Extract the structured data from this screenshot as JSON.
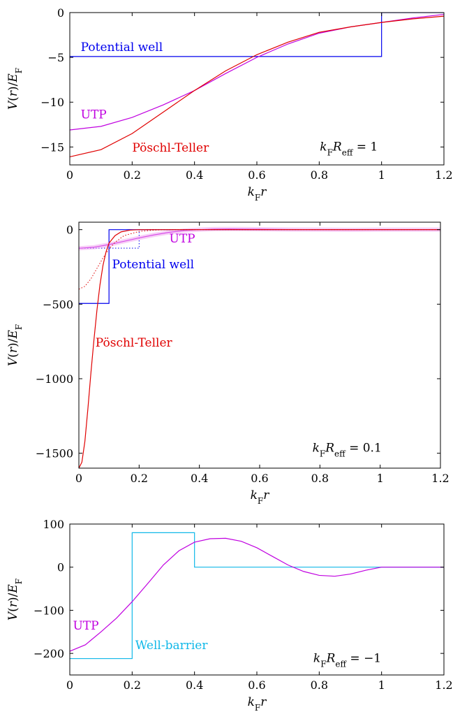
{
  "chart_data": [
    {
      "type": "line",
      "xlabel": "kFr",
      "ylabel": "V(r)/EF",
      "xlim": [
        0,
        1.2
      ],
      "ylim": [
        -17,
        0
      ],
      "xticks": [
        0,
        0.2,
        0.4,
        0.6,
        0.8,
        1,
        1.2
      ],
      "xtick_labels": [
        "0",
        "0.2",
        "0.4",
        "0.6",
        "0.8",
        "1",
        "1.2"
      ],
      "yticks": [
        0,
        -5,
        -10,
        -15
      ],
      "ytick_labels": [
        "0",
        "−5",
        "−10",
        "−15"
      ],
      "annotation": "kFReff = 1",
      "series": [
        {
          "name": "Potential well",
          "color": "#0000ee",
          "style": "solid",
          "points": [
            [
              0,
              -4.9
            ],
            [
              1.0,
              -4.9
            ],
            [
              1.0,
              0
            ],
            [
              1.2,
              0
            ]
          ]
        },
        {
          "name": "UTP",
          "color": "#c000e0",
          "style": "solid",
          "points": [
            [
              0,
              -13.1
            ],
            [
              0.1,
              -12.7
            ],
            [
              0.2,
              -11.7
            ],
            [
              0.3,
              -10.3
            ],
            [
              0.4,
              -8.7
            ],
            [
              0.5,
              -6.8
            ],
            [
              0.6,
              -5.0
            ],
            [
              0.7,
              -3.5
            ],
            [
              0.8,
              -2.3
            ],
            [
              0.9,
              -1.6
            ],
            [
              1.0,
              -1.1
            ],
            [
              1.1,
              -0.6
            ],
            [
              1.2,
              -0.2
            ]
          ]
        },
        {
          "name": "Pöschl-Teller",
          "color": "#e00000",
          "style": "solid",
          "points": [
            [
              0,
              -16.1
            ],
            [
              0.1,
              -15.3
            ],
            [
              0.2,
              -13.5
            ],
            [
              0.3,
              -11.1
            ],
            [
              0.4,
              -8.7
            ],
            [
              0.5,
              -6.5
            ],
            [
              0.6,
              -4.7
            ],
            [
              0.7,
              -3.3
            ],
            [
              0.8,
              -2.2
            ],
            [
              0.9,
              -1.6
            ],
            [
              1.0,
              -1.1
            ],
            [
              1.1,
              -0.7
            ],
            [
              1.2,
              -0.4
            ]
          ]
        }
      ]
    },
    {
      "type": "line",
      "xlabel": "kFr",
      "ylabel": "V(r)/EF",
      "xlim": [
        0,
        1.2
      ],
      "ylim": [
        -1600,
        50
      ],
      "xticks": [
        0,
        0.2,
        0.4,
        0.6,
        0.8,
        1,
        1.2
      ],
      "xtick_labels": [
        "0",
        "0.2",
        "0.4",
        "0.6",
        "0.8",
        "1",
        "1.2"
      ],
      "yticks": [
        0,
        -500,
        -1000,
        -1500
      ],
      "ytick_labels": [
        "0",
        "−500",
        "−1000",
        "−1500"
      ],
      "annotation": "kFReff = 0.1",
      "series": [
        {
          "name": "Potential well",
          "color": "#0000ee",
          "style": "solid",
          "points": [
            [
              0,
              -495
            ],
            [
              0.1,
              -495
            ],
            [
              0.1,
              0
            ],
            [
              1.2,
              0
            ]
          ]
        },
        {
          "name": "",
          "color": "#0000ee",
          "style": "dotted",
          "points": [
            [
              0,
              -124
            ],
            [
              0.2,
              -124
            ],
            [
              0.2,
              0
            ],
            [
              1.2,
              0
            ]
          ]
        },
        {
          "name": "UTP",
          "color": "#c000e0",
          "style": "solid",
          "points": [
            [
              0,
              -125
            ],
            [
              0.05,
              -118
            ],
            [
              0.1,
              -100
            ],
            [
              0.15,
              -78
            ],
            [
              0.2,
              -55
            ],
            [
              0.25,
              -35
            ],
            [
              0.3,
              -18
            ],
            [
              0.35,
              -6
            ],
            [
              0.4,
              0
            ],
            [
              0.45,
              4
            ],
            [
              0.5,
              5
            ],
            [
              0.55,
              4
            ],
            [
              0.6,
              3
            ],
            [
              0.7,
              1
            ],
            [
              0.8,
              0
            ],
            [
              0.9,
              -1
            ],
            [
              1.0,
              0
            ],
            [
              1.2,
              0
            ]
          ]
        },
        {
          "name": "",
          "color": "#f0a0f0",
          "style": "band",
          "points": [
            [
              0,
              -125
            ],
            [
              0.05,
              -118
            ],
            [
              0.1,
              -100
            ],
            [
              0.15,
              -78
            ],
            [
              0.2,
              -55
            ],
            [
              0.25,
              -35
            ],
            [
              0.3,
              -18
            ],
            [
              0.35,
              -6
            ],
            [
              0.4,
              0
            ],
            [
              0.45,
              4
            ],
            [
              0.5,
              5
            ],
            [
              0.55,
              4
            ],
            [
              0.6,
              3
            ],
            [
              0.7,
              1
            ],
            [
              0.8,
              0
            ],
            [
              0.9,
              -1
            ],
            [
              1.0,
              0
            ],
            [
              1.2,
              0
            ]
          ]
        },
        {
          "name": "Pöschl-Teller",
          "color": "#e00000",
          "style": "solid",
          "points": [
            [
              0,
              -1600
            ],
            [
              0.01,
              -1560
            ],
            [
              0.02,
              -1420
            ],
            [
              0.03,
              -1200
            ],
            [
              0.04,
              -960
            ],
            [
              0.05,
              -740
            ],
            [
              0.06,
              -540
            ],
            [
              0.07,
              -370
            ],
            [
              0.08,
              -240
            ],
            [
              0.09,
              -150
            ],
            [
              0.1,
              -90
            ],
            [
              0.12,
              -40
            ],
            [
              0.14,
              -15
            ],
            [
              0.17,
              -3
            ],
            [
              0.2,
              0
            ],
            [
              1.2,
              0
            ]
          ]
        },
        {
          "name": "",
          "color": "#e00000",
          "style": "dotted",
          "points": [
            [
              0,
              -400
            ],
            [
              0.02,
              -380
            ],
            [
              0.04,
              -330
            ],
            [
              0.06,
              -260
            ],
            [
              0.08,
              -190
            ],
            [
              0.1,
              -130
            ],
            [
              0.12,
              -85
            ],
            [
              0.15,
              -40
            ],
            [
              0.2,
              -12
            ],
            [
              0.25,
              -3
            ],
            [
              0.3,
              0
            ],
            [
              1.2,
              0
            ]
          ]
        }
      ]
    },
    {
      "type": "line",
      "xlabel": "kFr",
      "ylabel": "V(r)/EF",
      "xlim": [
        0,
        1.2
      ],
      "ylim": [
        -250,
        100
      ],
      "xticks": [
        0,
        0.2,
        0.4,
        0.6,
        0.8,
        1,
        1.2
      ],
      "xtick_labels": [
        "0",
        "0.2",
        "0.4",
        "0.6",
        "0.8",
        "1",
        "1.2"
      ],
      "yticks": [
        100,
        0,
        -100,
        -200
      ],
      "ytick_labels": [
        "100",
        "0",
        "−100",
        "−200"
      ],
      "annotation": "kFReff = −1",
      "series": [
        {
          "name": "Well-barrier",
          "color": "#10b8e8",
          "style": "solid",
          "points": [
            [
              0,
              -212
            ],
            [
              0.2,
              -212
            ],
            [
              0.2,
              80
            ],
            [
              0.4,
              80
            ],
            [
              0.4,
              0
            ],
            [
              1.2,
              0
            ]
          ]
        },
        {
          "name": "UTP",
          "color": "#c000e0",
          "style": "solid",
          "points": [
            [
              0,
              -195
            ],
            [
              0.05,
              -180
            ],
            [
              0.1,
              -150
            ],
            [
              0.15,
              -118
            ],
            [
              0.2,
              -80
            ],
            [
              0.25,
              -38
            ],
            [
              0.3,
              5
            ],
            [
              0.35,
              38
            ],
            [
              0.4,
              58
            ],
            [
              0.45,
              66
            ],
            [
              0.5,
              67
            ],
            [
              0.55,
              60
            ],
            [
              0.6,
              45
            ],
            [
              0.65,
              25
            ],
            [
              0.7,
              5
            ],
            [
              0.75,
              -10
            ],
            [
              0.8,
              -19
            ],
            [
              0.85,
              -21
            ],
            [
              0.9,
              -16
            ],
            [
              0.95,
              -7
            ],
            [
              1.0,
              0
            ],
            [
              1.2,
              0
            ]
          ]
        }
      ]
    }
  ]
}
